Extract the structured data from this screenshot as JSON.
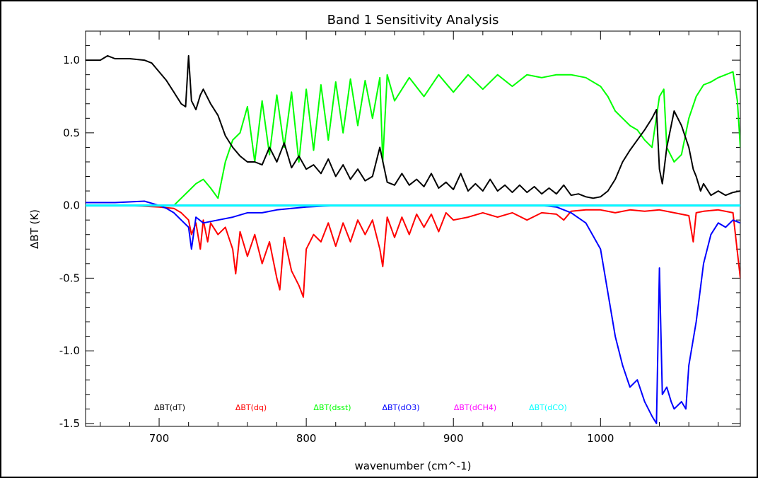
{
  "chart_data": {
    "type": "line",
    "title": "Band 1 Sensitivity Analysis",
    "xlabel": "wavenumber (cm^-1)",
    "ylabel": "ΔBT (K)",
    "xlim": [
      650,
      1095
    ],
    "ylim": [
      -1.52,
      1.2
    ],
    "xticks": [
      700,
      800,
      900,
      1000
    ],
    "xtick_labels": [
      "700",
      "800",
      "900",
      "1000"
    ],
    "yticks": [
      1.0,
      0.5,
      0.0,
      -0.5,
      -1.0,
      -1.5
    ],
    "ytick_labels": [
      "1.0",
      "0.5",
      "0.0",
      "-0.5",
      "-1.0",
      "-1.5"
    ],
    "grid": false,
    "legend": {
      "placement": "bottom-inside"
    },
    "series": [
      {
        "name": "ΔBT(dT)",
        "color": "#000000",
        "x": [
          650,
          660,
          665,
          670,
          680,
          690,
          695,
          700,
          705,
          710,
          715,
          718,
          720,
          722,
          725,
          728,
          730,
          735,
          740,
          745,
          750,
          755,
          760,
          765,
          770,
          775,
          780,
          785,
          790,
          795,
          800,
          805,
          810,
          815,
          820,
          825,
          830,
          835,
          840,
          845,
          850,
          855,
          860,
          865,
          870,
          875,
          880,
          885,
          890,
          895,
          900,
          905,
          910,
          915,
          920,
          925,
          930,
          935,
          940,
          945,
          950,
          955,
          960,
          965,
          970,
          975,
          980,
          985,
          990,
          995,
          1000,
          1005,
          1010,
          1015,
          1020,
          1025,
          1030,
          1035,
          1038,
          1040,
          1042,
          1045,
          1050,
          1055,
          1060,
          1063,
          1065,
          1068,
          1070,
          1075,
          1080,
          1085,
          1090,
          1095
        ],
        "y": [
          1.0,
          1.0,
          1.03,
          1.01,
          1.01,
          1.0,
          0.98,
          0.92,
          0.86,
          0.78,
          0.7,
          0.68,
          1.03,
          0.72,
          0.66,
          0.76,
          0.8,
          0.7,
          0.62,
          0.48,
          0.4,
          0.34,
          0.3,
          0.3,
          0.28,
          0.4,
          0.3,
          0.43,
          0.26,
          0.34,
          0.25,
          0.28,
          0.22,
          0.32,
          0.2,
          0.28,
          0.18,
          0.25,
          0.17,
          0.2,
          0.4,
          0.16,
          0.14,
          0.22,
          0.14,
          0.18,
          0.13,
          0.22,
          0.12,
          0.16,
          0.11,
          0.22,
          0.1,
          0.15,
          0.1,
          0.18,
          0.1,
          0.14,
          0.09,
          0.14,
          0.09,
          0.13,
          0.08,
          0.12,
          0.08,
          0.14,
          0.07,
          0.08,
          0.06,
          0.05,
          0.06,
          0.1,
          0.18,
          0.3,
          0.38,
          0.45,
          0.52,
          0.6,
          0.66,
          0.25,
          0.15,
          0.4,
          0.65,
          0.55,
          0.4,
          0.25,
          0.2,
          0.1,
          0.15,
          0.07,
          0.1,
          0.07,
          0.09,
          0.1
        ]
      },
      {
        "name": "ΔBT(dq)",
        "color": "#ff0000",
        "x": [
          650,
          680,
          700,
          710,
          715,
          720,
          722,
          725,
          728,
          730,
          733,
          735,
          740,
          745,
          750,
          752,
          755,
          760,
          765,
          770,
          775,
          780,
          782,
          785,
          790,
          795,
          798,
          800,
          805,
          810,
          815,
          820,
          825,
          830,
          835,
          840,
          845,
          850,
          852,
          855,
          860,
          865,
          870,
          875,
          880,
          885,
          890,
          895,
          900,
          910,
          920,
          930,
          940,
          950,
          960,
          970,
          975,
          980,
          990,
          1000,
          1010,
          1020,
          1030,
          1040,
          1050,
          1060,
          1063,
          1065,
          1070,
          1080,
          1090,
          1095
        ],
        "y": [
          0.0,
          0.0,
          -0.01,
          -0.02,
          -0.05,
          -0.1,
          -0.2,
          -0.12,
          -0.3,
          -0.1,
          -0.25,
          -0.12,
          -0.2,
          -0.15,
          -0.3,
          -0.47,
          -0.18,
          -0.35,
          -0.2,
          -0.4,
          -0.25,
          -0.5,
          -0.58,
          -0.22,
          -0.45,
          -0.55,
          -0.63,
          -0.3,
          -0.2,
          -0.25,
          -0.12,
          -0.28,
          -0.12,
          -0.25,
          -0.1,
          -0.2,
          -0.1,
          -0.3,
          -0.42,
          -0.08,
          -0.22,
          -0.08,
          -0.2,
          -0.06,
          -0.15,
          -0.06,
          -0.18,
          -0.05,
          -0.1,
          -0.08,
          -0.05,
          -0.08,
          -0.05,
          -0.1,
          -0.05,
          -0.06,
          -0.1,
          -0.04,
          -0.03,
          -0.03,
          -0.05,
          -0.03,
          -0.04,
          -0.03,
          -0.05,
          -0.07,
          -0.25,
          -0.05,
          -0.04,
          -0.03,
          -0.05,
          -0.5
        ]
      },
      {
        "name": "ΔBT(dsst)",
        "color": "#00ff00",
        "x": [
          650,
          700,
          710,
          715,
          720,
          725,
          730,
          735,
          740,
          745,
          750,
          755,
          760,
          765,
          770,
          775,
          780,
          785,
          790,
          795,
          800,
          805,
          810,
          815,
          820,
          825,
          830,
          835,
          840,
          845,
          850,
          852,
          855,
          860,
          870,
          880,
          890,
          900,
          910,
          920,
          930,
          940,
          950,
          960,
          970,
          980,
          990,
          1000,
          1005,
          1010,
          1015,
          1020,
          1025,
          1030,
          1035,
          1040,
          1043,
          1045,
          1050,
          1055,
          1060,
          1065,
          1070,
          1075,
          1080,
          1085,
          1090,
          1093,
          1095
        ],
        "y": [
          0.0,
          0.0,
          0.0,
          0.05,
          0.1,
          0.15,
          0.18,
          0.12,
          0.05,
          0.3,
          0.45,
          0.5,
          0.68,
          0.3,
          0.72,
          0.35,
          0.76,
          0.4,
          0.78,
          0.3,
          0.8,
          0.38,
          0.83,
          0.45,
          0.85,
          0.5,
          0.87,
          0.55,
          0.86,
          0.6,
          0.88,
          0.3,
          0.9,
          0.72,
          0.88,
          0.75,
          0.9,
          0.78,
          0.9,
          0.8,
          0.9,
          0.82,
          0.9,
          0.88,
          0.9,
          0.9,
          0.88,
          0.82,
          0.75,
          0.65,
          0.6,
          0.55,
          0.52,
          0.45,
          0.4,
          0.75,
          0.8,
          0.4,
          0.3,
          0.35,
          0.6,
          0.75,
          0.83,
          0.85,
          0.88,
          0.9,
          0.92,
          0.72,
          0.4
        ]
      },
      {
        "name": "ΔBT(dO3)",
        "color": "#0000ff",
        "x": [
          650,
          670,
          690,
          700,
          705,
          710,
          715,
          720,
          722,
          725,
          730,
          740,
          750,
          760,
          770,
          780,
          790,
          800,
          820,
          840,
          860,
          880,
          900,
          920,
          940,
          960,
          970,
          980,
          990,
          1000,
          1005,
          1010,
          1015,
          1020,
          1025,
          1030,
          1035,
          1038,
          1040,
          1042,
          1045,
          1048,
          1050,
          1055,
          1058,
          1060,
          1065,
          1070,
          1075,
          1080,
          1085,
          1090,
          1095
        ],
        "y": [
          0.02,
          0.02,
          0.03,
          0.0,
          -0.02,
          -0.05,
          -0.1,
          -0.15,
          -0.3,
          -0.08,
          -0.12,
          -0.1,
          -0.08,
          -0.05,
          -0.05,
          -0.03,
          -0.02,
          -0.01,
          0.0,
          0.0,
          0.0,
          0.0,
          0.0,
          0.0,
          0.0,
          0.0,
          -0.01,
          -0.05,
          -0.12,
          -0.3,
          -0.6,
          -0.9,
          -1.1,
          -1.25,
          -1.2,
          -1.35,
          -1.45,
          -1.5,
          -0.43,
          -1.3,
          -1.25,
          -1.35,
          -1.4,
          -1.35,
          -1.4,
          -1.1,
          -0.8,
          -0.4,
          -0.2,
          -0.12,
          -0.15,
          -0.1,
          -0.12
        ]
      },
      {
        "name": "ΔBT(dCH4)",
        "color": "#ff00ff",
        "x": [
          650,
          1095
        ],
        "y": [
          0.0,
          0.0
        ]
      },
      {
        "name": "ΔBT(dCO)",
        "color": "#00ffff",
        "x": [
          650,
          1095
        ],
        "y": [
          0.0,
          0.0
        ]
      }
    ]
  }
}
